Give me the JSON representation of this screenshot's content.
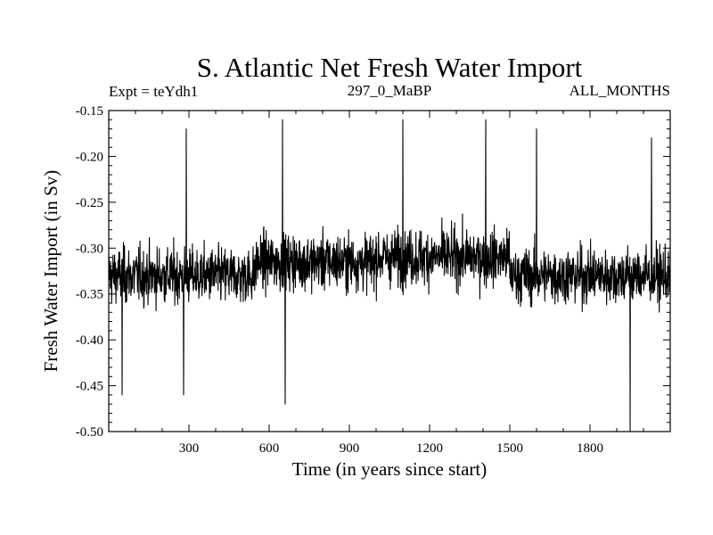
{
  "chart_data": {
    "type": "line",
    "title": "S. Atlantic Net Fresh Water Import",
    "subtitle_left": "Expt = teYdh1",
    "subtitle_center": "297_0_MaBP",
    "subtitle_right": "ALL_MONTHS",
    "xlabel": "Time (in years since start)",
    "ylabel": "Fresh Water Import (in Sv)",
    "xlim": [
      0,
      2100
    ],
    "ylim": [
      -0.5,
      -0.15
    ],
    "x_ticks": [
      300,
      600,
      900,
      1200,
      1500,
      1800
    ],
    "x_tick_labels": [
      "300",
      "600",
      "900",
      "1200",
      "1500",
      "1800"
    ],
    "y_ticks": [
      -0.15,
      -0.2,
      -0.25,
      -0.3,
      -0.35,
      -0.4,
      -0.45,
      -0.5
    ],
    "y_tick_labels": [
      "-0.15",
      "-0.20",
      "-0.25",
      "-0.30",
      "-0.35",
      "-0.40",
      "-0.45",
      "-0.50"
    ],
    "series": [
      {
        "name": "Net Fresh Water Import",
        "color": "#000000",
        "x_start": 1,
        "x_step": 1,
        "mean_by_segment": [
          {
            "from": 0,
            "to": 550,
            "mean": -0.33
          },
          {
            "from": 550,
            "to": 1000,
            "mean": -0.315
          },
          {
            "from": 1000,
            "to": 1500,
            "mean": -0.31
          },
          {
            "from": 1500,
            "to": 2100,
            "mean": -0.33
          }
        ],
        "std": 0.04,
        "min": -0.5,
        "max": -0.155,
        "extremes": [
          {
            "x": 50,
            "y": -0.46
          },
          {
            "x": 280,
            "y": -0.46
          },
          {
            "x": 290,
            "y": -0.17
          },
          {
            "x": 650,
            "y": -0.16
          },
          {
            "x": 660,
            "y": -0.47
          },
          {
            "x": 1100,
            "y": -0.16
          },
          {
            "x": 1410,
            "y": -0.16
          },
          {
            "x": 1600,
            "y": -0.17
          },
          {
            "x": 1950,
            "y": -0.5
          },
          {
            "x": 2030,
            "y": -0.18
          }
        ]
      }
    ]
  }
}
